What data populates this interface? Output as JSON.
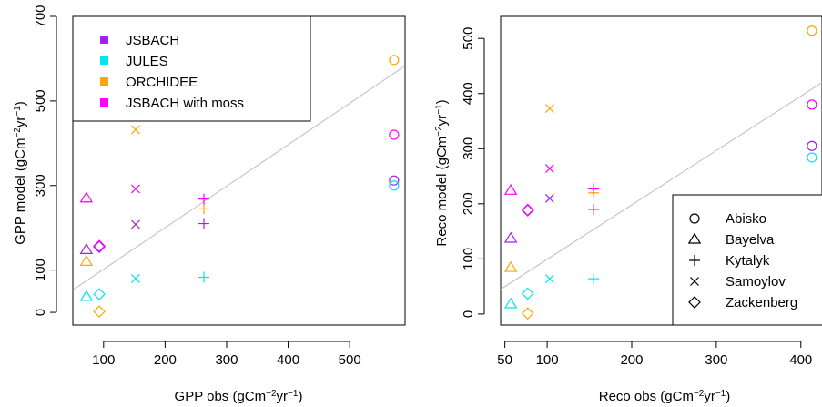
{
  "colors": {
    "JSBACH": "#a020f0",
    "JULES": "#00e5ee",
    "ORCHIDEE": "#ffa500",
    "JSBACH with moss": "#ff00ff",
    "fit_line": "#bebebe"
  },
  "chart_data": [
    {
      "type": "scatter",
      "xlabel": "GPP obs (gCm⁻²yr⁻¹)",
      "ylabel": "GPP model (gCm⁻²yr⁻¹)",
      "xlim": [
        50,
        590
      ],
      "ylim": [
        -30,
        700
      ],
      "xticks": [
        100,
        200,
        300,
        400,
        500
      ],
      "yticks": [
        0,
        100,
        300,
        500,
        700
      ],
      "grid": false,
      "legend": {
        "position": "top-left",
        "entries": [
          "JSBACH",
          "JULES",
          "ORCHIDEE",
          "JSBACH with moss"
        ]
      },
      "fit_line": {
        "x": [
          50,
          590
        ],
        "y": [
          53,
          583
        ]
      },
      "series": [
        {
          "name": "JSBACH",
          "points": [
            {
              "x": 572,
              "y": 312,
              "site": "Abisko"
            },
            {
              "x": 72,
              "y": 148,
              "site": "Bayelva"
            },
            {
              "x": 263,
              "y": 210,
              "site": "Kytalyk"
            },
            {
              "x": 152,
              "y": 208,
              "site": "Samoylov"
            },
            {
              "x": 93,
              "y": 155,
              "site": "Zackenberg"
            }
          ]
        },
        {
          "name": "JULES",
          "points": [
            {
              "x": 572,
              "y": 300,
              "site": "Abisko"
            },
            {
              "x": 72,
              "y": 37,
              "site": "Bayelva"
            },
            {
              "x": 263,
              "y": 83,
              "site": "Kytalyk"
            },
            {
              "x": 152,
              "y": 80,
              "site": "Samoylov"
            },
            {
              "x": 93,
              "y": 43,
              "site": "Zackenberg"
            }
          ]
        },
        {
          "name": "ORCHIDEE",
          "points": [
            {
              "x": 572,
              "y": 597,
              "site": "Abisko"
            },
            {
              "x": 72,
              "y": 120,
              "site": "Bayelva"
            },
            {
              "x": 263,
              "y": 245,
              "site": "Kytalyk"
            },
            {
              "x": 152,
              "y": 432,
              "site": "Samoylov"
            },
            {
              "x": 93,
              "y": 2,
              "site": "Zackenberg"
            }
          ]
        },
        {
          "name": "JSBACH with moss",
          "points": [
            {
              "x": 572,
              "y": 420,
              "site": "Abisko"
            },
            {
              "x": 72,
              "y": 270,
              "site": "Bayelva"
            },
            {
              "x": 263,
              "y": 268,
              "site": "Kytalyk"
            },
            {
              "x": 152,
              "y": 292,
              "site": "Samoylov"
            },
            {
              "x": 93,
              "y": 157,
              "site": "Zackenberg"
            }
          ]
        }
      ]
    },
    {
      "type": "scatter",
      "xlabel": "Reco obs (gCm⁻²yr⁻¹)",
      "ylabel": "Reco model (gCm⁻²yr⁻¹)",
      "xlim": [
        45,
        425
      ],
      "ylim": [
        -20,
        540
      ],
      "xticks": [
        50,
        100,
        200,
        300,
        400
      ],
      "yticks": [
        0,
        100,
        200,
        300,
        400,
        500
      ],
      "grid": false,
      "legend": {
        "position": "bottom-right",
        "entries": [
          "Abisko",
          "Bayelva",
          "Kytalyk",
          "Samoylov",
          "Zackenberg"
        ]
      },
      "fit_line": {
        "x": [
          45,
          425
        ],
        "y": [
          45,
          420
        ]
      },
      "series": [
        {
          "name": "JSBACH",
          "points": [
            {
              "x": 413,
              "y": 305,
              "site": "Abisko"
            },
            {
              "x": 57,
              "y": 137,
              "site": "Bayelva"
            },
            {
              "x": 155,
              "y": 190,
              "site": "Kytalyk"
            },
            {
              "x": 103,
              "y": 210,
              "site": "Samoylov"
            },
            {
              "x": 77,
              "y": 188,
              "site": "Zackenberg"
            }
          ]
        },
        {
          "name": "JULES",
          "points": [
            {
              "x": 413,
              "y": 284,
              "site": "Abisko"
            },
            {
              "x": 57,
              "y": 18,
              "site": "Bayelva"
            },
            {
              "x": 155,
              "y": 64,
              "site": "Kytalyk"
            },
            {
              "x": 103,
              "y": 64,
              "site": "Samoylov"
            },
            {
              "x": 77,
              "y": 37,
              "site": "Zackenberg"
            }
          ]
        },
        {
          "name": "ORCHIDEE",
          "points": [
            {
              "x": 413,
              "y": 514,
              "site": "Abisko"
            },
            {
              "x": 57,
              "y": 84,
              "site": "Bayelva"
            },
            {
              "x": 155,
              "y": 220,
              "site": "Kytalyk"
            },
            {
              "x": 103,
              "y": 373,
              "site": "Samoylov"
            },
            {
              "x": 77,
              "y": 1,
              "site": "Zackenberg"
            }
          ]
        },
        {
          "name": "JSBACH with moss",
          "points": [
            {
              "x": 413,
              "y": 380,
              "site": "Abisko"
            },
            {
              "x": 57,
              "y": 224,
              "site": "Bayelva"
            },
            {
              "x": 155,
              "y": 227,
              "site": "Kytalyk"
            },
            {
              "x": 103,
              "y": 264,
              "site": "Samoylov"
            },
            {
              "x": 77,
              "y": 189,
              "site": "Zackenberg"
            }
          ]
        }
      ]
    }
  ]
}
